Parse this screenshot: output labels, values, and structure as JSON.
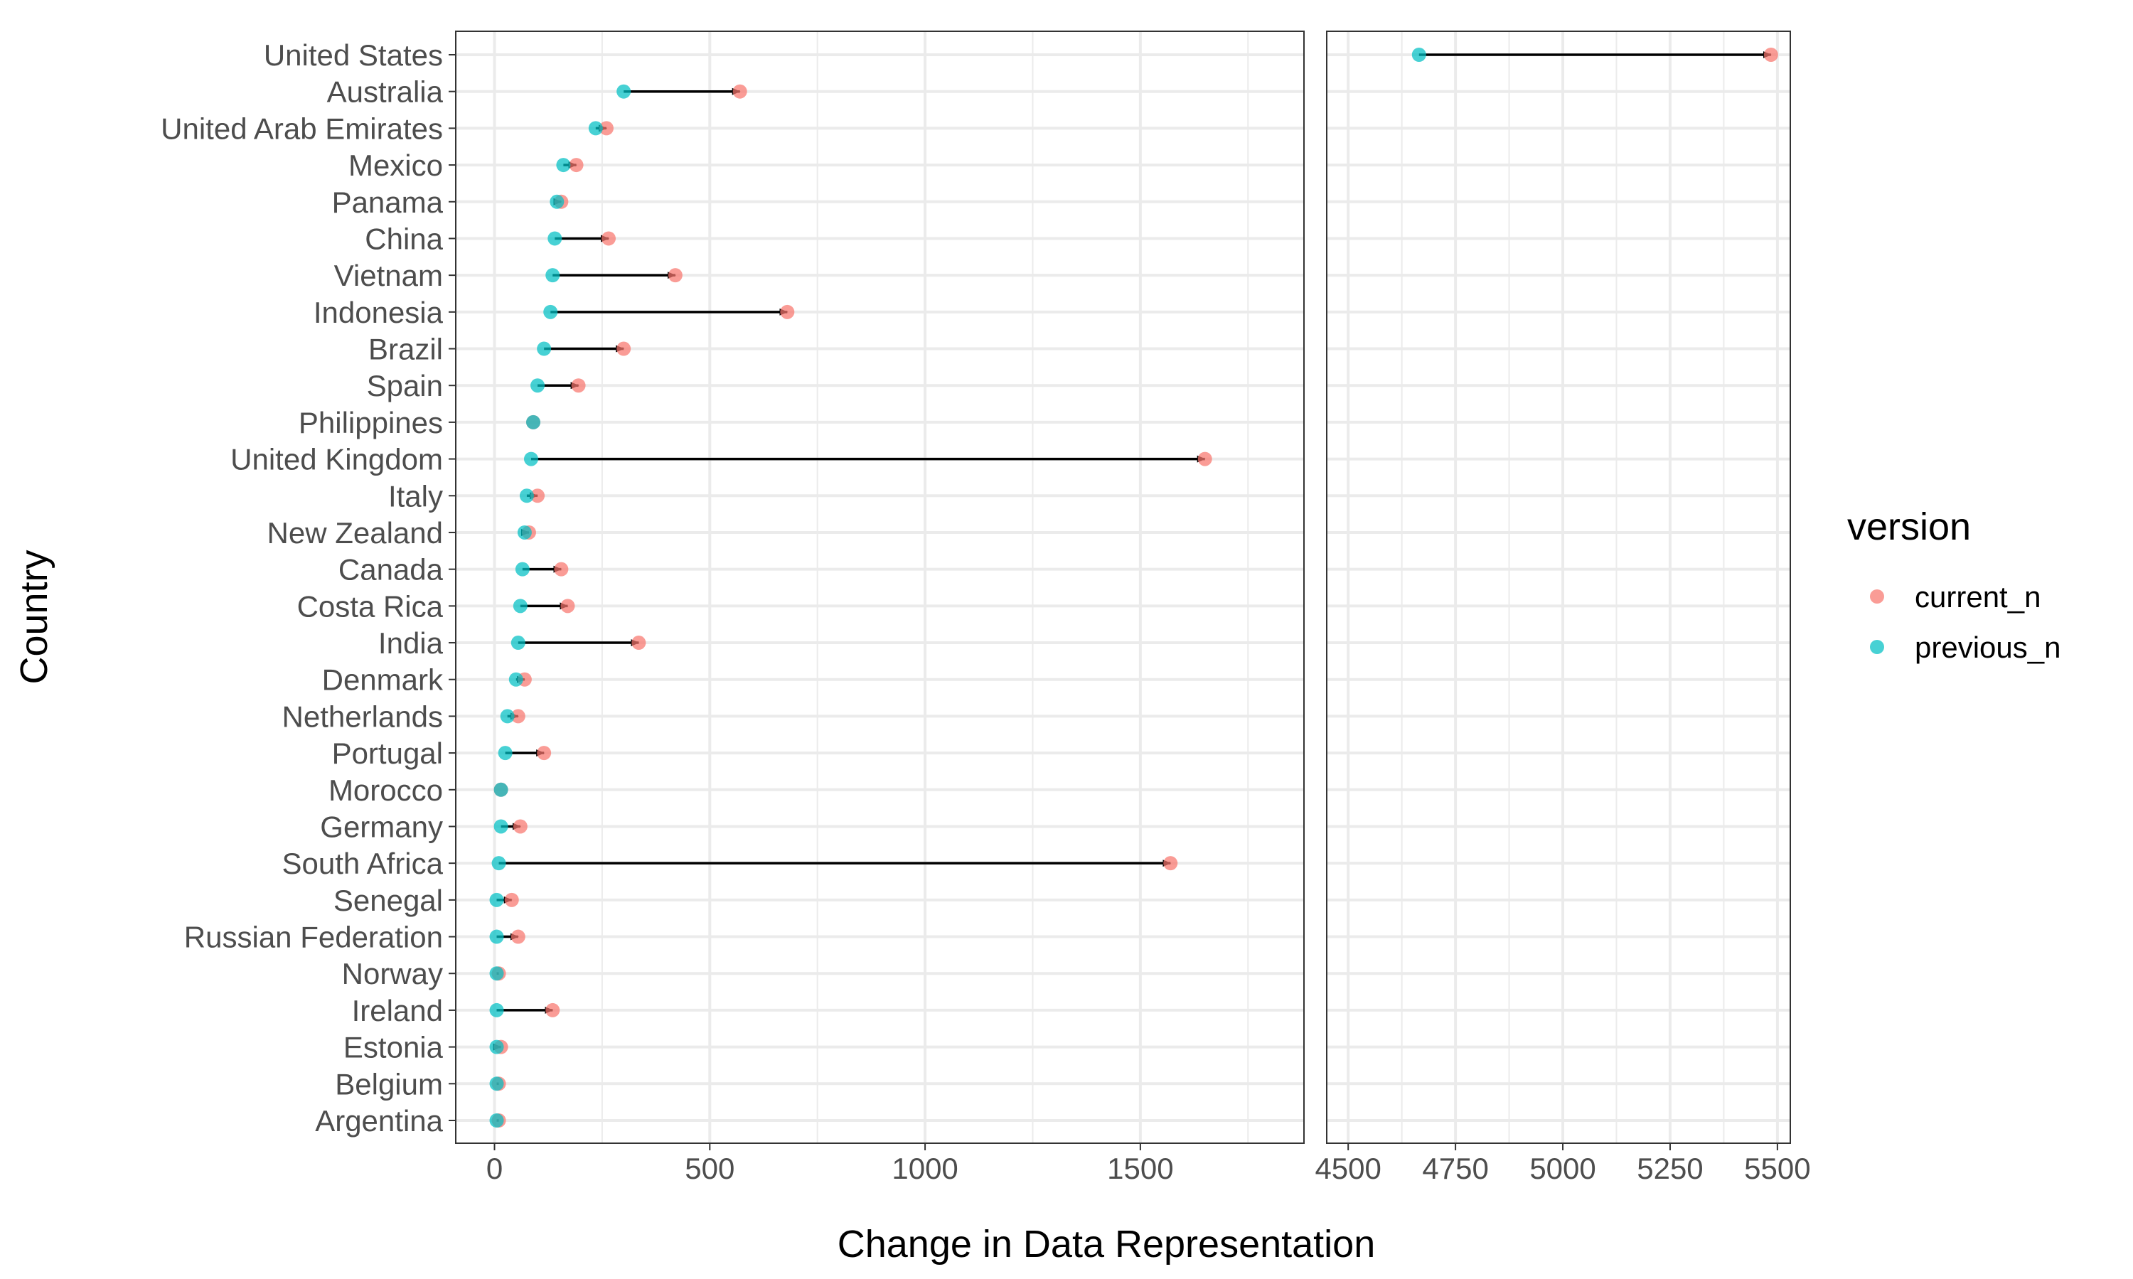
{
  "chart_data": {
    "type": "dumbbell",
    "xlabel": "Change in Data Representation",
    "ylabel": "Country",
    "legend": {
      "title": "version",
      "position": "right",
      "entries": [
        {
          "name": "current_n",
          "color": "#F8766D"
        },
        {
          "name": "previous_n",
          "color": "#00BFC4"
        }
      ]
    },
    "grid": true,
    "panels": [
      {
        "xlim": [
          -90,
          1880
        ],
        "ticks": [
          0,
          500,
          1000,
          1500
        ]
      },
      {
        "xlim": [
          4450,
          5530
        ],
        "ticks": [
          4500,
          4750,
          5000,
          5250,
          5500
        ]
      }
    ],
    "categories": [
      "United States",
      "Australia",
      "United Arab Emirates",
      "Mexico",
      "Panama",
      "China",
      "Vietnam",
      "Indonesia",
      "Brazil",
      "Spain",
      "Philippines",
      "United Kingdom",
      "Italy",
      "New Zealand",
      "Canada",
      "Costa Rica",
      "India",
      "Denmark",
      "Netherlands",
      "Portugal",
      "Morocco",
      "Germany",
      "South Africa",
      "Senegal",
      "Russian Federation",
      "Norway",
      "Ireland",
      "Estonia",
      "Belgium",
      "Argentina"
    ],
    "series": [
      {
        "name": "previous_n",
        "values": [
          4665,
          300,
          235,
          160,
          145,
          140,
          135,
          130,
          115,
          100,
          90,
          85,
          75,
          70,
          65,
          60,
          55,
          50,
          30,
          25,
          15,
          15,
          10,
          5,
          5,
          5,
          5,
          5,
          5,
          5
        ]
      },
      {
        "name": "current_n",
        "values": [
          5485,
          570,
          260,
          190,
          155,
          265,
          420,
          680,
          300,
          195,
          90,
          1650,
          100,
          80,
          155,
          170,
          335,
          70,
          55,
          115,
          15,
          60,
          1570,
          40,
          55,
          10,
          135,
          15,
          10,
          10
        ]
      }
    ]
  }
}
